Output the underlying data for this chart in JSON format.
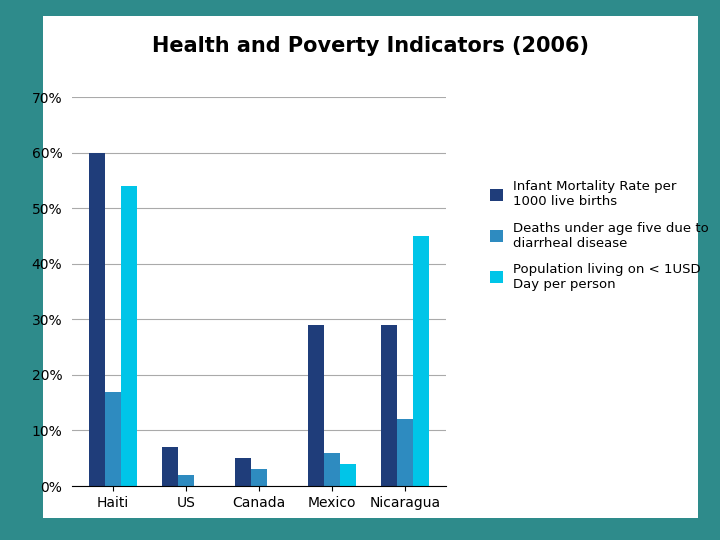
{
  "title": "Health and Poverty Indicators (2006)",
  "categories": [
    "Haiti",
    "US",
    "Canada",
    "Mexico",
    "Nicaragua"
  ],
  "series": [
    {
      "label": "Infant Mortality Rate per\n1000 live births",
      "color": "#1F3D7A",
      "values": [
        60,
        7,
        5,
        29,
        29
      ]
    },
    {
      "label": "Deaths under age five due to\ndiarrheal disease",
      "color": "#2E8BC0",
      "values": [
        17,
        2,
        3,
        6,
        12
      ]
    },
    {
      "label": "Population living on < 1USD\nDay per person",
      "color": "#00C5E8",
      "values": [
        54,
        0,
        0,
        4,
        45
      ]
    }
  ],
  "ylim": [
    0,
    70
  ],
  "yticks": [
    0,
    10,
    20,
    30,
    40,
    50,
    60,
    70
  ],
  "ytick_labels": [
    "0%",
    "10%",
    "20%",
    "30%",
    "40%",
    "50%",
    "60%",
    "70%"
  ],
  "background_color": "#FFFFFF",
  "outer_background_color": "#2E8B8B",
  "title_fontsize": 15,
  "legend_fontsize": 9.5,
  "tick_fontsize": 10,
  "bar_width": 0.22
}
